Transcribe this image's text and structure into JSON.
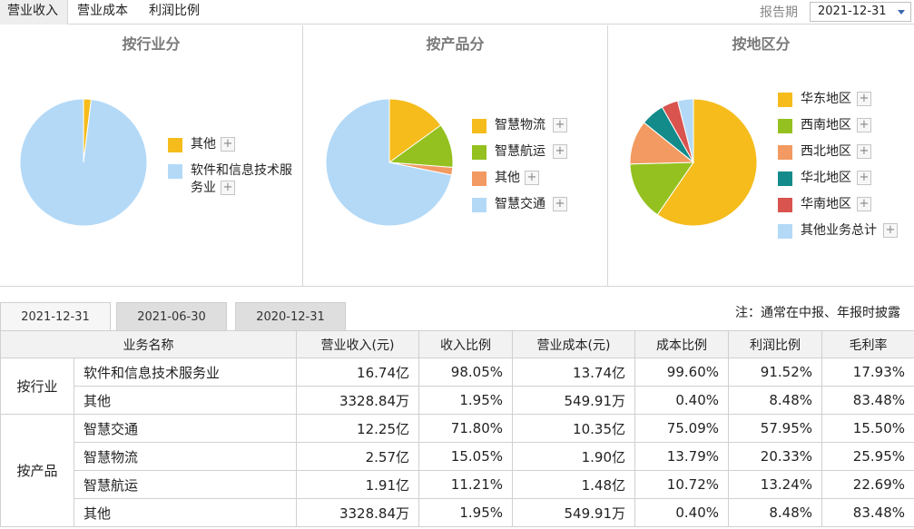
{
  "top_tabs": [
    "营业收入",
    "营业成本",
    "利润比例"
  ],
  "report": {
    "label": "报告期",
    "value": "2021-12-31"
  },
  "date_tabs": [
    "2021-12-31",
    "2021-06-30",
    "2020-12-31"
  ],
  "note": "注：通常在中报、年报时披露",
  "plus_symbol": "+",
  "chart_data": [
    {
      "type": "pie",
      "title": "按行业分",
      "labels": [
        "其他",
        "软件和信息技术服务业"
      ],
      "values": [
        1.95,
        98.05
      ],
      "colors": [
        "#f5bc1c",
        "#b3d9f7"
      ]
    },
    {
      "type": "pie",
      "title": "按产品分",
      "labels": [
        "智慧物流",
        "智慧航运",
        "其他",
        "智慧交通"
      ],
      "values": [
        15.05,
        11.21,
        1.95,
        71.8
      ],
      "colors": [
        "#f5bc1c",
        "#94c11f",
        "#f29a61",
        "#b3d9f7"
      ]
    },
    {
      "type": "pie",
      "title": "按地区分",
      "labels": [
        "华东地区",
        "西南地区",
        "西北地区",
        "华北地区",
        "华南地区",
        "其他业务总计"
      ],
      "values": [
        59.6,
        15.0,
        11.2,
        6.0,
        4.2,
        4.0
      ],
      "colors": [
        "#f5bc1c",
        "#94c11f",
        "#f29a61",
        "#138b8a",
        "#d9534f",
        "#b3d9f7"
      ]
    }
  ],
  "legend_labels": {
    "industry": [
      "其他",
      "软件和信息技术服",
      "务业"
    ],
    "product": [
      "智慧物流",
      "智慧航运",
      "其他",
      "智慧交通"
    ],
    "region": [
      "华东地区",
      "西南地区",
      "西北地区",
      "华北地区",
      "华南地区",
      "其他业务总计"
    ]
  },
  "table": {
    "headers": [
      "业务名称",
      "营业收入(元)",
      "收入比例",
      "营业成本(元)",
      "成本比例",
      "利润比例",
      "毛利率"
    ],
    "groups": [
      {
        "name": "按行业",
        "rows": [
          [
            "软件和信息技术服务业",
            "16.74亿",
            "98.05%",
            "13.74亿",
            "99.60%",
            "91.52%",
            "17.93%"
          ],
          [
            "其他",
            "3328.84万",
            "1.95%",
            "549.91万",
            "0.40%",
            "8.48%",
            "83.48%"
          ]
        ]
      },
      {
        "name": "按产品",
        "rows": [
          [
            "智慧交通",
            "12.25亿",
            "71.80%",
            "10.35亿",
            "75.09%",
            "57.95%",
            "15.50%"
          ],
          [
            "智慧物流",
            "2.57亿",
            "15.05%",
            "1.90亿",
            "13.79%",
            "20.33%",
            "25.95%"
          ],
          [
            "智慧航运",
            "1.91亿",
            "11.21%",
            "1.48亿",
            "10.72%",
            "13.24%",
            "22.69%"
          ],
          [
            "其他",
            "3328.84万",
            "1.95%",
            "549.91万",
            "0.40%",
            "8.48%",
            "83.48%"
          ]
        ]
      }
    ]
  }
}
